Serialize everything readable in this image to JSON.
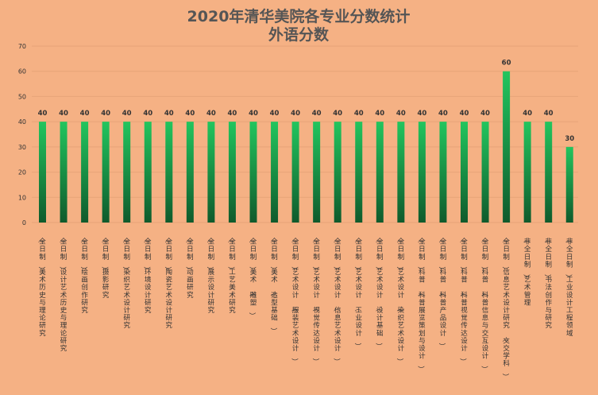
{
  "chart_data": {
    "type": "bar",
    "title": "2020年清华美院各专业分数统计",
    "subtitle": "外语分数",
    "xlabel": "",
    "ylabel": "",
    "ylim": [
      0,
      70
    ],
    "yticks": [
      0,
      10,
      20,
      30,
      40,
      50,
      60,
      70
    ],
    "grid": true,
    "legend": "none",
    "bar_color_top": "#22c55e",
    "bar_color_bottom": "#0f5a2c",
    "categories": [
      "（全日制）美术历史与理论研究",
      "（全日制）设计艺术历史与理论研究",
      "（全日制）绘画创作研究",
      "（全日制）摄影研究",
      "（全日制）染织艺术设计研究",
      "（全日制）环境设计研究",
      "（全日制）陶瓷艺术设计研究",
      "（全日制）动画研究",
      "（全日制）展示设计研究",
      "（全日制）工艺美术研究",
      "（全日制）美术（雕塑）",
      "（全日制）美术（造型基础）",
      "（全日制）艺术设计（服装艺术设计）",
      "（全日制）艺术设计（视觉传达设计）",
      "（全日制）艺术设计（信息艺术设计）",
      "（全日制）艺术设计（工业设计）",
      "（全日制）艺术设计（设计基础）",
      "（全日制）艺术设计（染织艺术设计）",
      "（全日制）科普（科普展览策划与设计）",
      "（全日制）科普（科普产品设计）",
      "（全日制）科普（科普视觉传达设计）",
      "（全日制）科普（科普信息与交互设计）",
      "（全日制）信息艺术设计研究（文交学科）",
      "（非全日制）艺术管理",
      "（非全日制）书法创作与研究",
      "（非全日制）工业设计工程领域"
    ],
    "values": [
      40,
      40,
      40,
      40,
      40,
      40,
      40,
      40,
      40,
      40,
      40,
      40,
      40,
      40,
      40,
      40,
      40,
      40,
      40,
      40,
      40,
      40,
      60,
      40,
      40,
      30
    ]
  }
}
